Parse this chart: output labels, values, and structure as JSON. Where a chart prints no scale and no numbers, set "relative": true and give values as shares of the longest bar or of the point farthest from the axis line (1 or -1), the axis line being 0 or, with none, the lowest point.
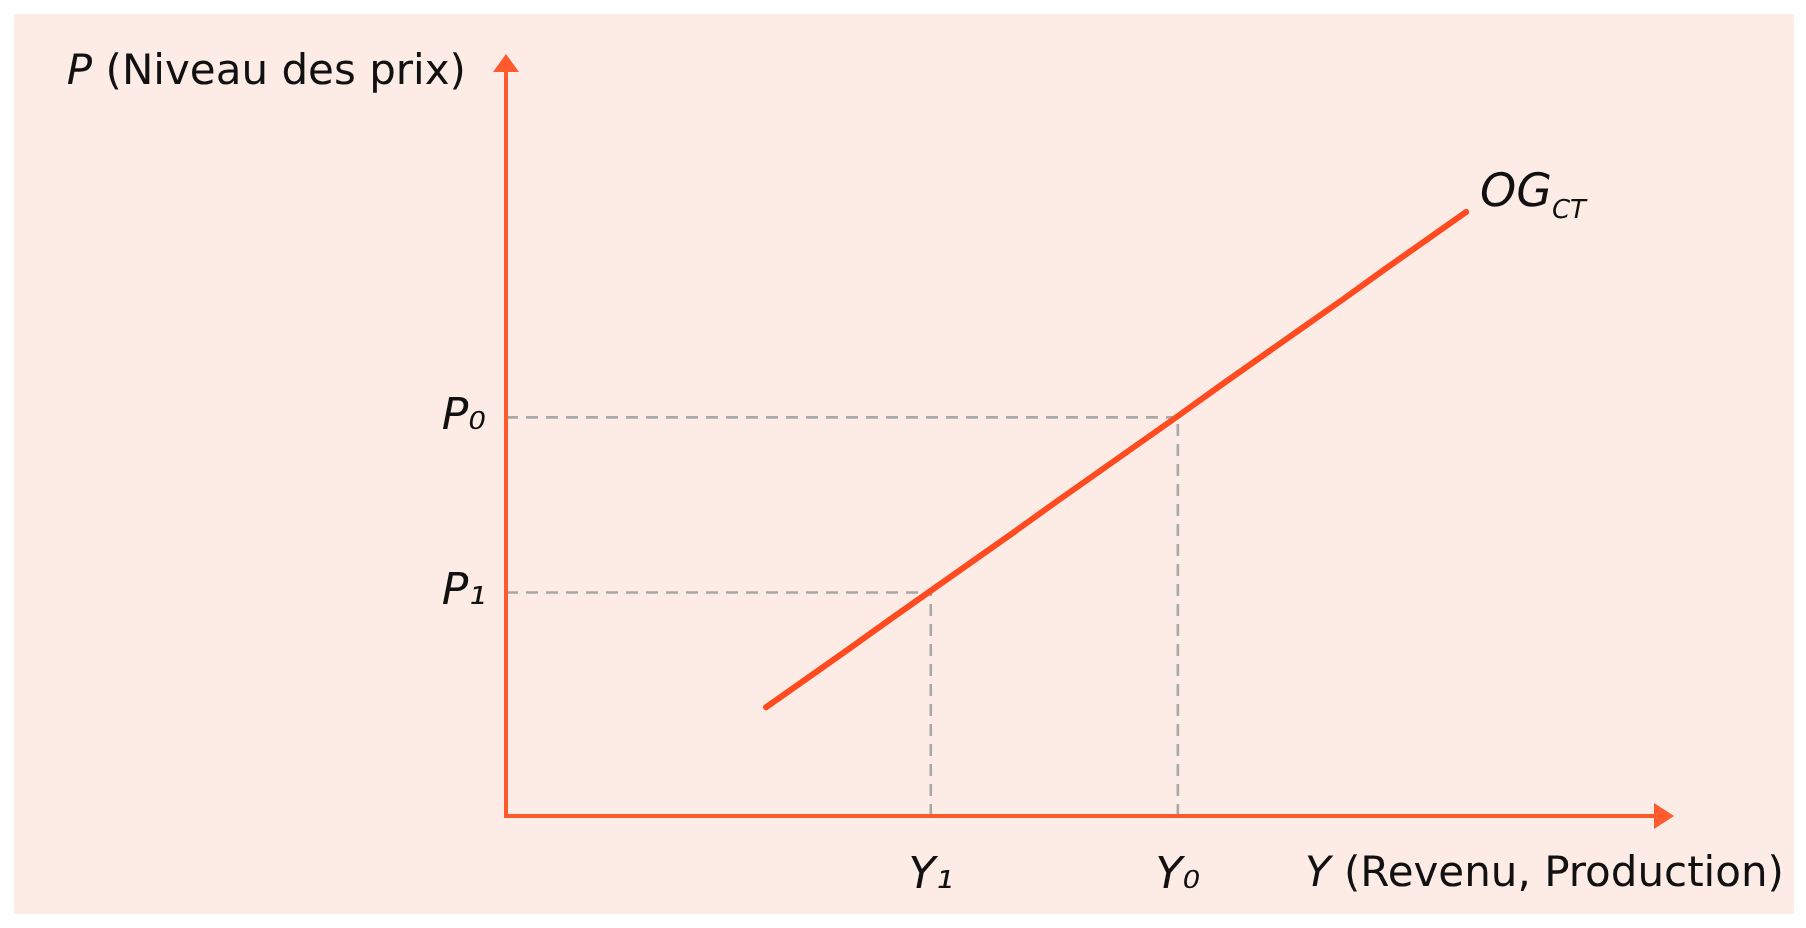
{
  "chart_data": {
    "type": "line",
    "relative": true,
    "xlabel": "Y (Revenu, Production)",
    "ylabel": "P (Niveau des prix)",
    "marker": "none",
    "categories": [
      null,
      null,
      null,
      null,
      null,
      null,
      null,
      null,
      null,
      null,
      "Y₁",
      null,
      null,
      null,
      null,
      null,
      "Y₀",
      null,
      null,
      null,
      null,
      null,
      null,
      null,
      null,
      null,
      null,
      null,
      null
    ],
    "series": [
      {
        "name": "OG$_{CT}$",
        "color": "#ff4b1f",
        "values": [
          null,
          null,
          null,
          null,
          null,
          null,
          0.18,
          0.228,
          0.276,
          0.325,
          0.373,
          0.421,
          0.469,
          0.518,
          0.566,
          0.614,
          0.662,
          0.711,
          0.759,
          0.807,
          0.855,
          0.904,
          0.952,
          1,
          null,
          null,
          null,
          null,
          null
        ]
      }
    ],
    "ref_lines": [
      {
        "axis": "x",
        "value": "Y₁",
        "color": "#a8a8a8",
        "line_style": "dashed"
      },
      {
        "axis": "x",
        "value": "Y₀",
        "color": "#a8a8a8",
        "line_style": "dashed"
      },
      {
        "axis": "y",
        "value": 0.66,
        "label": "P₀",
        "color": "#a8a8a8",
        "line_style": "dashed"
      },
      {
        "axis": "y",
        "value": 0.37,
        "label": "P₁",
        "color": "#a8a8a8",
        "line_style": "dashed"
      }
    ]
  }
}
